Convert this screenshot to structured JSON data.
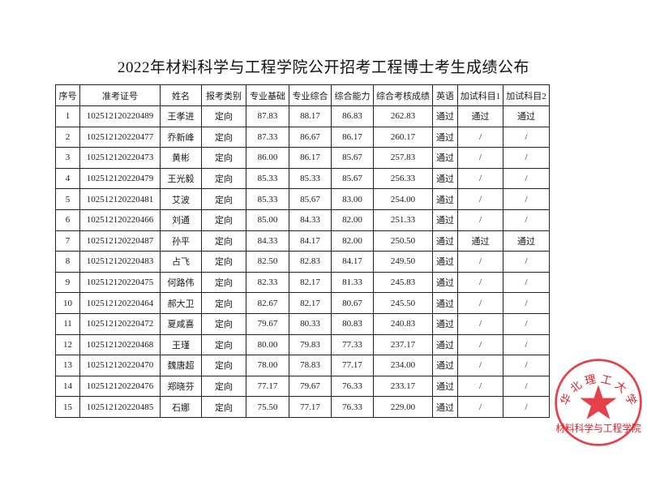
{
  "title": "2022年材料科学与工程学院公开招考工程博士考生成绩公布",
  "columns": [
    "序号",
    "准考证号",
    "姓名",
    "报考类别",
    "专业基础",
    "专业综合",
    "综合能力",
    "综合考核成绩",
    "英语",
    "加试科目1",
    "加试科目2"
  ],
  "rows": [
    [
      "1",
      "102512120220489",
      "王孝进",
      "定向",
      "87.83",
      "88.17",
      "86.83",
      "262.83",
      "通过",
      "通过",
      "通过"
    ],
    [
      "2",
      "102512120220477",
      "乔新峰",
      "定向",
      "87.33",
      "86.67",
      "86.17",
      "260.17",
      "通过",
      "/",
      "/"
    ],
    [
      "3",
      "102512120220473",
      "黄彬",
      "定向",
      "86.00",
      "86.17",
      "85.67",
      "257.83",
      "通过",
      "/",
      "/"
    ],
    [
      "4",
      "102512120220479",
      "王光毅",
      "定向",
      "85.33",
      "85.33",
      "85.67",
      "256.33",
      "通过",
      "/",
      "/"
    ],
    [
      "5",
      "102512120220481",
      "艾波",
      "定向",
      "85.33",
      "85.67",
      "83.00",
      "254.00",
      "通过",
      "/",
      "/"
    ],
    [
      "6",
      "102512120220466",
      "刘通",
      "定向",
      "85.00",
      "84.33",
      "82.00",
      "251.33",
      "通过",
      "/",
      "/"
    ],
    [
      "7",
      "102512120220487",
      "孙平",
      "定向",
      "84.33",
      "84.17",
      "82.00",
      "250.50",
      "通过",
      "通过",
      "通过"
    ],
    [
      "8",
      "102512120220483",
      "占飞",
      "定向",
      "82.50",
      "82.83",
      "84.17",
      "249.50",
      "通过",
      "/",
      "/"
    ],
    [
      "9",
      "102512120220475",
      "何路伟",
      "定向",
      "82.33",
      "82.17",
      "81.33",
      "245.83",
      "通过",
      "/",
      "/"
    ],
    [
      "10",
      "102512120220464",
      "郝大卫",
      "定向",
      "82.67",
      "82.17",
      "80.67",
      "245.50",
      "通过",
      "/",
      "/"
    ],
    [
      "11",
      "102512120220472",
      "夏咸喜",
      "定向",
      "79.67",
      "80.33",
      "80.83",
      "240.83",
      "通过",
      "/",
      "/"
    ],
    [
      "12",
      "102512120220468",
      "王瑾",
      "定向",
      "80.00",
      "79.83",
      "77.33",
      "237.17",
      "通过",
      "/",
      "/"
    ],
    [
      "13",
      "102512120220470",
      "魏唐超",
      "定向",
      "78.00",
      "78.83",
      "77.17",
      "234.00",
      "通过",
      "/",
      "/"
    ],
    [
      "14",
      "102512120220476",
      "郑晓芬",
      "定向",
      "77.17",
      "79.67",
      "76.33",
      "233.17",
      "通过",
      "/",
      "/"
    ],
    [
      "15",
      "102512120220485",
      "石娜",
      "定向",
      "75.50",
      "77.17",
      "76.33",
      "229.00",
      "通过",
      "/",
      "/"
    ]
  ],
  "stamp": {
    "text": "材料科学与工程学院",
    "top_text": "华 北 理 工 大 学",
    "color": "#e2202a"
  }
}
